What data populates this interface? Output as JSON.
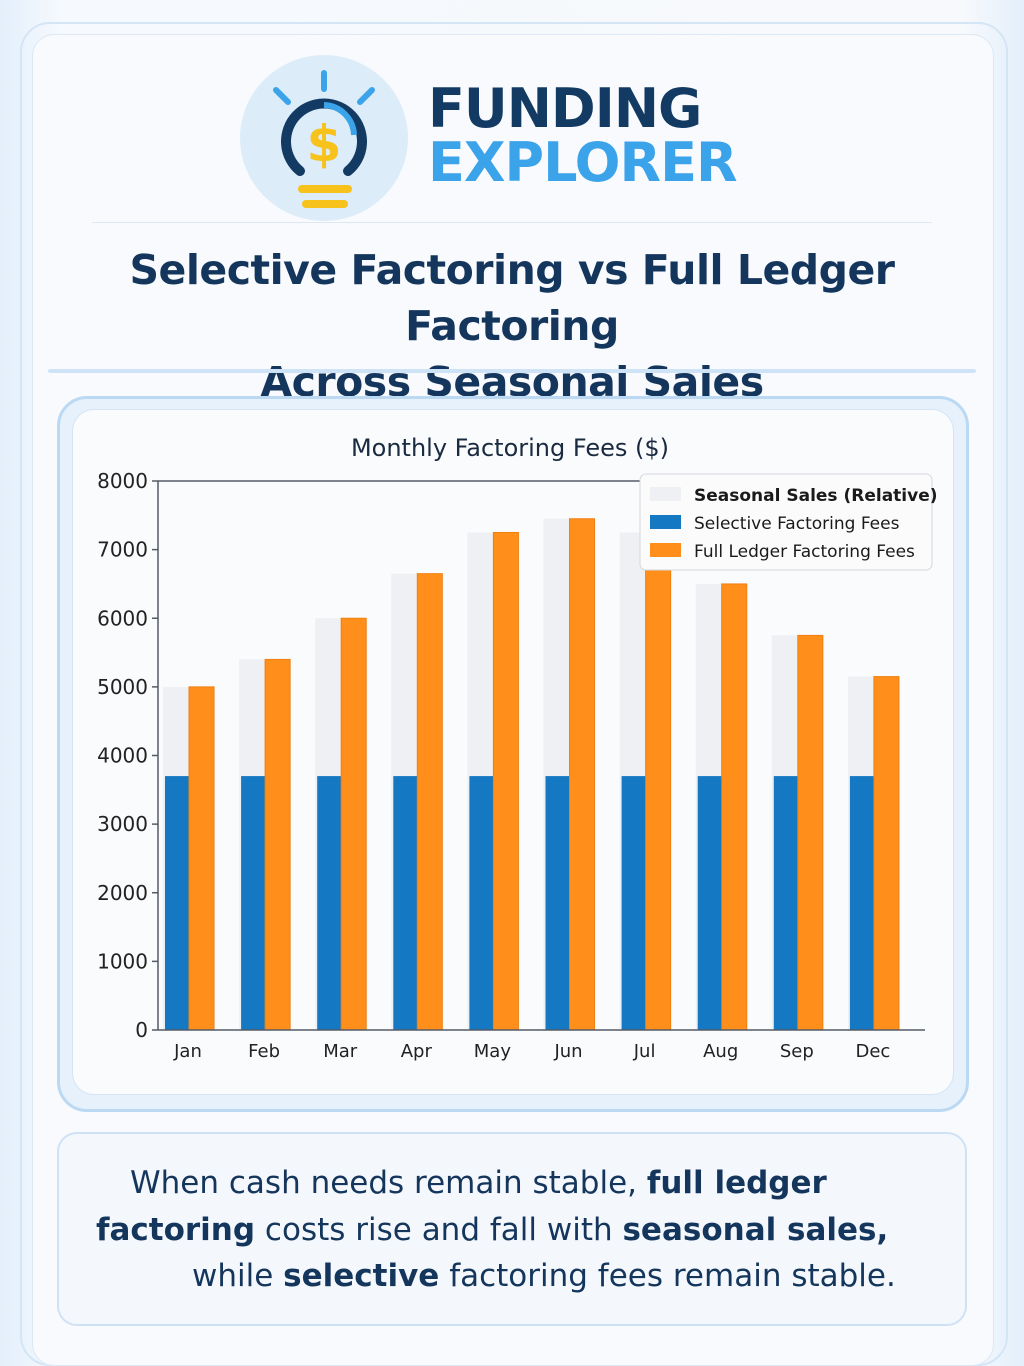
{
  "brand": {
    "line1": "FUNDING",
    "line2": "EXPLORER",
    "icon": "lightbulb-dollar-icon"
  },
  "title": {
    "line1": "Selective Factoring vs Full Ledger Factoring",
    "line2": "Across Seasonal Sales"
  },
  "colors": {
    "navy": "#15365c",
    "accent_blue": "#3ba3ea",
    "selective": "#1578c2",
    "full_ledger": "#ff8f1a",
    "seasonal": "#eef0f3"
  },
  "chart_data": {
    "type": "bar",
    "title": "Monthly Factoring Fees ($)",
    "categories": [
      "Jan",
      "Feb",
      "Mar",
      "Apr",
      "May",
      "Jun",
      "Jul",
      "Aug",
      "Sep",
      "Dec"
    ],
    "series": [
      {
        "name": "Seasonal Sales (Relative)",
        "values": [
          5000,
          5400,
          6000,
          6650,
          7250,
          7450,
          7250,
          6500,
          5750,
          5150
        ]
      },
      {
        "name": "Selective Factoring Fees",
        "values": [
          3700,
          3700,
          3700,
          3700,
          3700,
          3700,
          3700,
          3700,
          3700,
          3700
        ]
      },
      {
        "name": "Full Ledger Factoring Fees",
        "values": [
          5000,
          5400,
          6000,
          6650,
          7250,
          7450,
          7250,
          6500,
          5750,
          5150
        ]
      }
    ],
    "yticks": [
      "0",
      "1000",
      "2000",
      "3000",
      "4000",
      "5000",
      "6000",
      "7000",
      "8000"
    ],
    "ylim": [
      0,
      8000
    ],
    "xlabel": "",
    "ylabel": "",
    "grid": false,
    "legend": "top-right"
  },
  "note": {
    "l1a": "When cash needs remain stable, ",
    "l1b": "full ledger",
    "l2a": "factoring",
    "l2b": " costs rise and fall with ",
    "l2c": "seasonal sales,",
    "l3a": "while ",
    "l3b": "selective",
    "l3c": " factoring fees remain stable."
  }
}
